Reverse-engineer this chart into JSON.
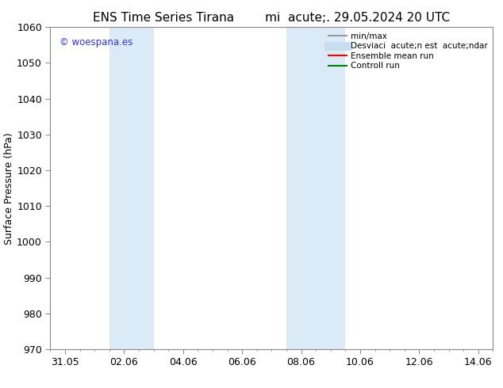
{
  "title_part1": "ENS Time Series Tirana",
  "title_part2": "mi  acute;. 29.05.2024 20 UTC",
  "ylabel": "Surface Pressure (hPa)",
  "ylim": [
    970,
    1060
  ],
  "yticks": [
    970,
    980,
    990,
    1000,
    1010,
    1020,
    1030,
    1040,
    1050,
    1060
  ],
  "xtick_labels": [
    "31.05",
    "02.06",
    "04.06",
    "06.06",
    "08.06",
    "10.06",
    "12.06",
    "14.06"
  ],
  "xtick_positions": [
    0,
    2,
    4,
    6,
    8,
    10,
    12,
    14
  ],
  "xlim": [
    -0.5,
    14.5
  ],
  "shade_bands": [
    {
      "x_start": 1.5,
      "x_end": 3.0
    },
    {
      "x_start": 7.5,
      "x_end": 9.5
    }
  ],
  "shade_color": "#daeaf7",
  "watermark_text": "© woespana.es",
  "watermark_color": "#3333cc",
  "legend_labels": [
    "min/max",
    "Desviaci  acute;n est  acute;ndar",
    "Ensemble mean run",
    "Controll run"
  ],
  "legend_colors": [
    "#999999",
    "#c8ddf0",
    "red",
    "green"
  ],
  "legend_lws": [
    1.5,
    8,
    1.5,
    1.5
  ],
  "bg_color": "#ffffff",
  "grid_color": "#dddddd",
  "title_fontsize": 11,
  "ylabel_fontsize": 9,
  "tick_fontsize": 9,
  "legend_fontsize": 7.5
}
